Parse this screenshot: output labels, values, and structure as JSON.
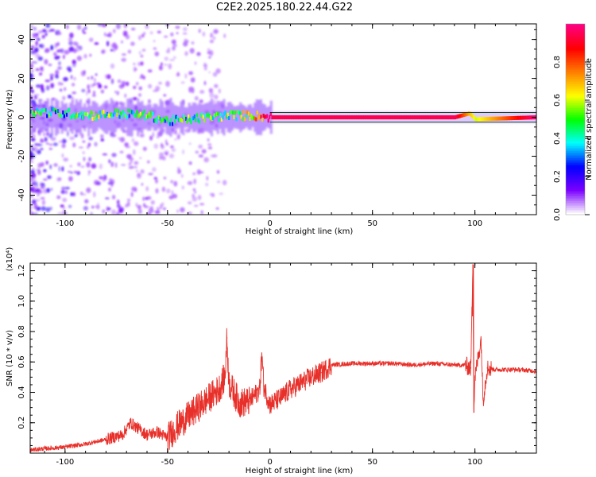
{
  "page": {
    "title": "C2E2.2025.180.22.44.G22"
  },
  "chart_data": [
    {
      "id": "spectrogram",
      "type": "heatmap",
      "title": "C2E2.2025.180.22.44.G22",
      "xlabel": "Height of straight line (km)",
      "ylabel": "Frequency (Hz)",
      "xlim": [
        -117,
        130
      ],
      "ylim": [
        -50,
        48
      ],
      "xticks": [
        -100,
        -50,
        0,
        50,
        100
      ],
      "yticks": [
        -40,
        -20,
        0,
        20,
        40
      ],
      "colorbar": {
        "label": "Normalized spectral amplitude",
        "range": [
          0,
          1
        ],
        "ticks": [
          0.0,
          0.2,
          0.4,
          0.6,
          0.8
        ],
        "tick_labels": [
          "0.0",
          "0.2",
          "0.4",
          "0.6",
          "0.8"
        ],
        "colormap": [
          "#ffffff",
          "#7b00ff",
          "#0000ff",
          "#00ffff",
          "#00ff00",
          "#ffff00",
          "#ff8000",
          "#ff0000",
          "#ff0080"
        ]
      },
      "ridge": [
        {
          "x": -117,
          "freq": 3,
          "amp": 0.45
        },
        {
          "x": -100,
          "freq": 2,
          "amp": 0.4
        },
        {
          "x": -85,
          "freq": 1,
          "amp": 0.5
        },
        {
          "x": -75,
          "freq": 2,
          "amp": 0.45
        },
        {
          "x": -60,
          "freq": 1,
          "amp": 0.45
        },
        {
          "x": -50,
          "freq": -2,
          "amp": 0.4
        },
        {
          "x": -40,
          "freq": -1,
          "amp": 0.45
        },
        {
          "x": -30,
          "freq": 0,
          "amp": 0.5
        },
        {
          "x": -20,
          "freq": 1,
          "amp": 0.5
        },
        {
          "x": -10,
          "freq": 1,
          "amp": 0.6
        },
        {
          "x": 0,
          "freq": 0,
          "amp": 0.95
        },
        {
          "x": 50,
          "freq": 0,
          "amp": 0.95
        },
        {
          "x": 90,
          "freq": 0,
          "amp": 0.95
        },
        {
          "x": 97,
          "freq": 2,
          "amp": 0.7
        },
        {
          "x": 100,
          "freq": -1,
          "amp": 0.6
        },
        {
          "x": 130,
          "freq": 0,
          "amp": 1.0
        }
      ]
    },
    {
      "id": "snr",
      "type": "line",
      "xlabel": "Height of straight line (km)",
      "ylabel": "SNR (10 * v/v)",
      "y_multiplier": "(x10⁴)",
      "xlim": [
        -117,
        130
      ],
      "ylim": [
        0,
        1.25
      ],
      "xticks": [
        -100,
        -50,
        0,
        50,
        100
      ],
      "yticks": [
        0.2,
        0.4,
        0.6,
        0.8,
        1.0,
        1.2
      ],
      "ytick_labels": [
        "0.2",
        "0.4",
        "0.6",
        "0.8",
        "1.0",
        "1.2"
      ],
      "color": "#e8302a",
      "x": [
        -117,
        -110,
        -100,
        -90,
        -80,
        -72,
        -68,
        -60,
        -55,
        -50,
        -45,
        -40,
        -35,
        -30,
        -25,
        -22,
        -21,
        -20,
        -15,
        -10,
        -5,
        -4,
        -3,
        0,
        5,
        10,
        15,
        20,
        25,
        30,
        40,
        50,
        60,
        70,
        80,
        90,
        95,
        98,
        99,
        99.5,
        100,
        101,
        103,
        104,
        106,
        110,
        120,
        130
      ],
      "y": [
        0.02,
        0.03,
        0.04,
        0.06,
        0.09,
        0.12,
        0.2,
        0.12,
        0.14,
        0.1,
        0.18,
        0.24,
        0.3,
        0.36,
        0.42,
        0.5,
        0.76,
        0.46,
        0.33,
        0.34,
        0.42,
        0.66,
        0.44,
        0.32,
        0.36,
        0.42,
        0.46,
        0.5,
        0.53,
        0.58,
        0.59,
        0.59,
        0.59,
        0.58,
        0.59,
        0.58,
        0.58,
        0.56,
        1.24,
        0.27,
        0.5,
        0.58,
        0.75,
        0.35,
        0.56,
        0.55,
        0.55,
        0.54
      ]
    }
  ]
}
